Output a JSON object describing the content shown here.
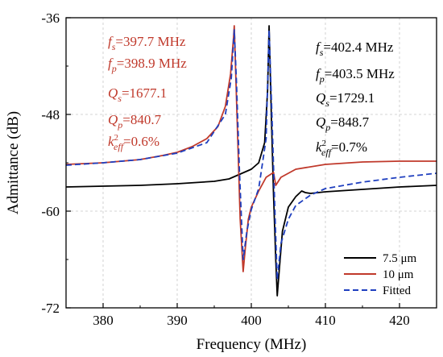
{
  "chart_data": {
    "type": "line",
    "xlabel": "Frequency (MHz)",
    "ylabel": "Admittance (dB)",
    "xlim": [
      375,
      425
    ],
    "ylim": [
      -72,
      -36
    ],
    "xticks": [
      380,
      390,
      400,
      410,
      420
    ],
    "yticks": [
      -36,
      -48,
      -60,
      -72
    ],
    "grid": true,
    "legend_position": "bottom-right",
    "series": [
      {
        "name": "7.5 μm",
        "color": "#000000",
        "style": "solid",
        "x": [
          375,
          380,
          385,
          390,
          395,
          397,
          398,
          399,
          400,
          401,
          401.8,
          402.2,
          402.4,
          402.7,
          403.0,
          403.3,
          403.5,
          403.8,
          404.2,
          405,
          406,
          406.8,
          407.3,
          408,
          410,
          415,
          420,
          425
        ],
        "y": [
          -57.0,
          -56.9,
          -56.8,
          -56.6,
          -56.3,
          -56.0,
          -55.6,
          -55.2,
          -54.8,
          -54.0,
          -51.5,
          -45.0,
          -37.0,
          -48.0,
          -58.0,
          -66.0,
          -70.5,
          -67.0,
          -62.5,
          -59.5,
          -58.2,
          -57.5,
          -57.7,
          -57.8,
          -57.6,
          -57.3,
          -57.0,
          -56.8
        ]
      },
      {
        "name": "10 μm",
        "color": "#c0392b",
        "style": "solid",
        "x": [
          375,
          380,
          385,
          388,
          390,
          392,
          394,
          395.5,
          396.5,
          397.2,
          397.6,
          397.7,
          397.9,
          398.2,
          398.5,
          398.9,
          399.2,
          399.6,
          400,
          401,
          402,
          402.5,
          403,
          403.3,
          404,
          406,
          410,
          415,
          420,
          425
        ],
        "y": [
          -54.2,
          -54.0,
          -53.6,
          -53.1,
          -52.7,
          -52.0,
          -51.0,
          -49.5,
          -47.0,
          -43.0,
          -38.5,
          -37.0,
          -43.0,
          -52.0,
          -61.0,
          -67.5,
          -64.5,
          -61.0,
          -59.5,
          -57.5,
          -55.8,
          -55.5,
          -55.2,
          -56.8,
          -55.8,
          -54.8,
          -54.2,
          -53.9,
          -53.8,
          -53.8
        ]
      },
      {
        "name": "Fitted",
        "color": "#1f3fbf",
        "style": "dashed",
        "x": [
          375,
          380,
          385,
          390,
          394,
          396.5,
          397.3,
          397.7,
          398.0,
          398.4,
          398.9,
          399.4,
          400,
          401,
          402,
          402.4,
          402.8,
          403.2,
          403.5,
          404,
          405,
          406,
          408,
          410,
          415,
          420,
          425
        ],
        "y": [
          -54.3,
          -54.0,
          -53.6,
          -52.8,
          -51.5,
          -48.0,
          -43.5,
          -37.5,
          -44.0,
          -55.0,
          -66.0,
          -62.5,
          -59.8,
          -57.2,
          -51.0,
          -37.5,
          -48.5,
          -60.5,
          -68.5,
          -64.0,
          -61.0,
          -59.3,
          -58.0,
          -57.2,
          -56.4,
          -55.8,
          -55.3
        ]
      }
    ],
    "annotations": [
      {
        "lines": [
          "fs=397.7 MHz",
          "fp=398.9 MHz",
          "Qs=1677.1",
          "Qp=840.7",
          "k2eff=0.6%"
        ],
        "color": "#c0392b"
      },
      {
        "lines": [
          "fs=402.4 MHz",
          "fp=403.5 MHz",
          "Qs=1729.1",
          "Qp=848.7",
          "k2eff=0.7%"
        ],
        "color": "#000000"
      }
    ]
  },
  "annot_red": {
    "fs_sym": "f",
    "fs_sub": "s",
    "fs_val": "=397.7 MHz",
    "fp_sym": "f",
    "fp_sub": "p",
    "fp_val": "=398.9 MHz",
    "qs_sym": "Q",
    "qs_sub": "s",
    "qs_val": "=1677.1",
    "qp_sym": "Q",
    "qp_sub": "p",
    "qp_val": "=840.7",
    "k_sym": "k",
    "k_sup": "2",
    "k_sub": "eff",
    "k_val": "=0.6%"
  },
  "annot_black": {
    "fs_sym": "f",
    "fs_sub": "s",
    "fs_val": "=402.4 MHz",
    "fp_sym": "f",
    "fp_sub": "p",
    "fp_val": "=403.5 MHz",
    "qs_sym": "Q",
    "qs_sub": "s",
    "qs_val": "=1729.1",
    "qp_sym": "Q",
    "qp_sub": "p",
    "qp_val": "=848.7",
    "k_sym": "k",
    "k_sup": "2",
    "k_sub": "eff",
    "k_val": "=0.7%"
  }
}
